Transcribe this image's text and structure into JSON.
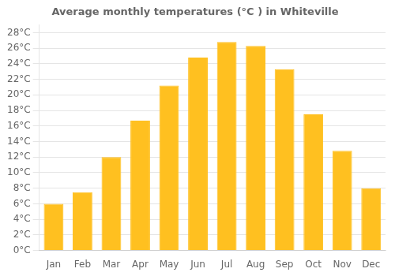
{
  "chart_data": {
    "type": "bar",
    "title": "Average monthly temperatures (°C ) in Whiteville",
    "categories": [
      "Jan",
      "Feb",
      "Mar",
      "Apr",
      "May",
      "Jun",
      "Jul",
      "Aug",
      "Sep",
      "Oct",
      "Nov",
      "Dec"
    ],
    "values": [
      6.0,
      7.5,
      12.0,
      16.7,
      21.2,
      24.8,
      26.8,
      26.3,
      23.3,
      17.5,
      12.8,
      8.0
    ],
    "color": "#FFC020",
    "ylim": [
      0,
      29
    ],
    "yticks": [
      {
        "value": 0,
        "label": "0°C"
      },
      {
        "value": 2,
        "label": "2°C"
      },
      {
        "value": 4,
        "label": "4°C"
      },
      {
        "value": 6,
        "label": "6°C"
      },
      {
        "value": 8,
        "label": "8°C"
      },
      {
        "value": 10,
        "label": "10°C"
      },
      {
        "value": 12,
        "label": "12°C"
      },
      {
        "value": 14,
        "label": "14°C"
      },
      {
        "value": 16,
        "label": "16°C"
      },
      {
        "value": 18,
        "label": "18°C"
      },
      {
        "value": 20,
        "label": "20°C"
      },
      {
        "value": 22,
        "label": "22°C"
      },
      {
        "value": 24,
        "label": "24°C"
      },
      {
        "value": 26,
        "label": "26°C"
      },
      {
        "value": 28,
        "label": "28°C"
      }
    ],
    "grid": true
  }
}
